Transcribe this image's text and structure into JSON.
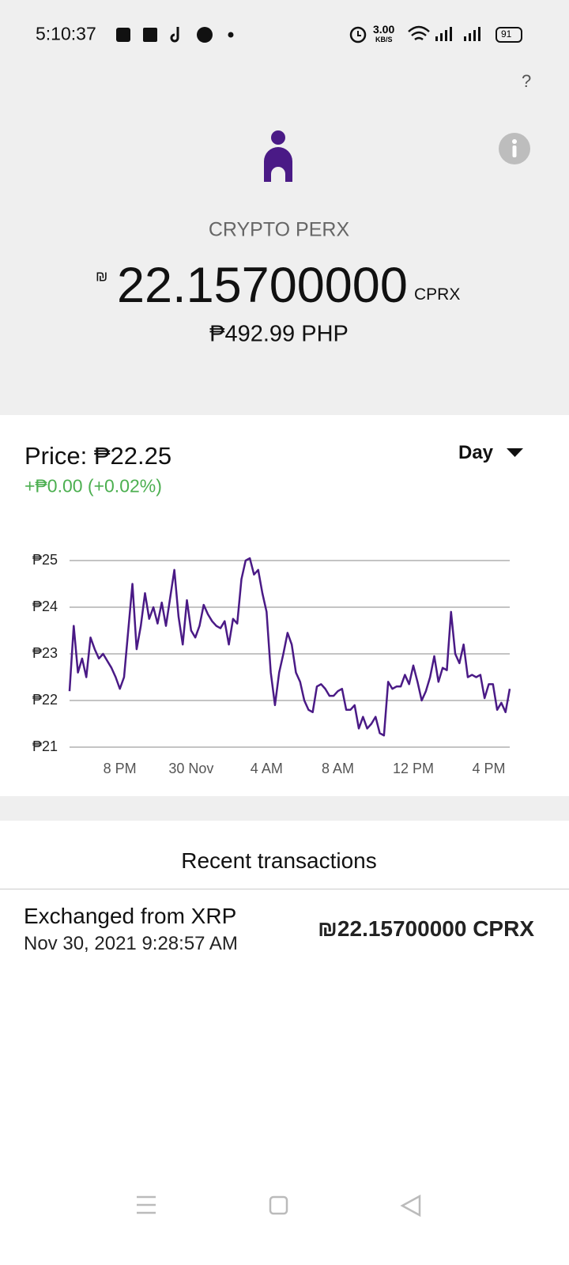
{
  "status_bar": {
    "time": "5:10:37",
    "net_speed": "3.00",
    "net_unit": "KB/S",
    "battery": "91"
  },
  "help": "?",
  "asset": {
    "name": "CRYPTO PERX",
    "symbol": "₪",
    "balance": "22.15700000",
    "unit": "CPRX",
    "fiat": "₱492.99 PHP"
  },
  "price": {
    "label": "Price: ₱22.25",
    "change": "+₱0.00 (+0.02%)",
    "period": "Day"
  },
  "chart_data": {
    "type": "line",
    "categories": [
      null,
      null,
      null,
      null,
      null,
      null,
      null,
      null,
      null,
      null,
      null,
      null,
      "8 PM",
      null,
      null,
      null,
      null,
      null,
      null,
      null,
      null,
      null,
      null,
      null,
      null,
      null,
      null,
      null,
      null,
      "30 Nov",
      null,
      null,
      null,
      null,
      null,
      null,
      null,
      null,
      null,
      null,
      null,
      null,
      null,
      null,
      null,
      null,
      null,
      "4 AM",
      null,
      null,
      null,
      null,
      null,
      null,
      null,
      null,
      null,
      null,
      null,
      null,
      null,
      null,
      null,
      null,
      "8 AM",
      null,
      null,
      null,
      null,
      null,
      null,
      null,
      null,
      null,
      null,
      null,
      null,
      null,
      null,
      null,
      null,
      null,
      "12 PM",
      null,
      null,
      null,
      null,
      null,
      null,
      null,
      null,
      null,
      null,
      null,
      null,
      null,
      null,
      null,
      null,
      null,
      "4 PM",
      null,
      null,
      null,
      null,
      null
    ],
    "series": [
      {
        "color": "#4a1a86",
        "values": [
          22.2,
          23.6,
          22.6,
          22.9,
          22.5,
          23.35,
          23.1,
          22.9,
          23.0,
          22.85,
          22.7,
          22.5,
          22.25,
          22.5,
          23.5,
          24.5,
          23.1,
          23.6,
          24.3,
          23.75,
          24.0,
          23.65,
          24.1,
          23.6,
          24.2,
          24.8,
          23.8,
          23.2,
          24.15,
          23.5,
          23.35,
          23.6,
          24.05,
          23.85,
          23.7,
          23.6,
          23.55,
          23.7,
          23.2,
          23.75,
          23.65,
          24.6,
          25.0,
          25.05,
          24.7,
          24.8,
          24.3,
          23.9,
          22.6,
          21.9,
          22.6,
          23.0,
          23.45,
          23.2,
          22.6,
          22.4,
          22.0,
          21.8,
          21.75,
          22.3,
          22.35,
          22.25,
          22.1,
          22.1,
          22.2,
          22.25,
          21.8,
          21.8,
          21.9,
          21.4,
          21.65,
          21.4,
          21.5,
          21.65,
          21.3,
          21.25,
          22.4,
          22.25,
          22.3,
          22.3,
          22.55,
          22.35,
          22.75,
          22.4,
          22.0,
          22.2,
          22.5,
          22.95,
          22.4,
          22.7,
          22.65,
          23.9,
          23.0,
          22.8,
          23.2,
          22.5,
          22.55,
          22.5,
          22.55,
          22.05,
          22.35,
          22.35,
          21.8,
          21.95,
          21.75,
          22.25
        ]
      }
    ],
    "ylim": [
      21,
      25
    ],
    "yticks": [
      {
        "value": 21,
        "label": "₱21"
      },
      {
        "value": 22,
        "label": "₱22"
      },
      {
        "value": 23,
        "label": "₱23"
      },
      {
        "value": 24,
        "label": "₱24"
      },
      {
        "value": 25,
        "label": "₱25"
      }
    ],
    "grid": true
  },
  "transactions": {
    "title": "Recent transactions",
    "items": [
      {
        "title": "Exchanged from XRP",
        "date": "Nov 30, 2021 9:28:57 AM",
        "amount": "₪22.15700000 CPRX"
      }
    ]
  }
}
